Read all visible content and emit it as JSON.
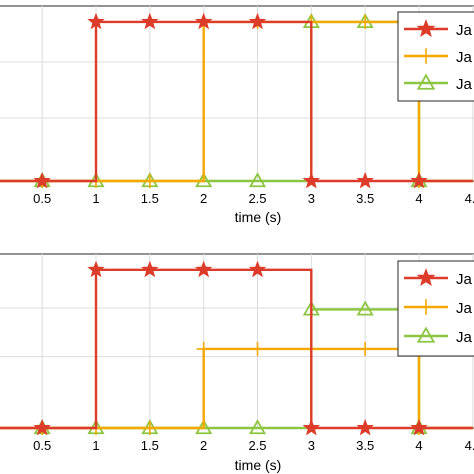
{
  "colors": {
    "series_1": "#dd3c2a",
    "series_2": "#f5a800",
    "series_3": "#8cc640"
  },
  "chart_data": [
    {
      "type": "line",
      "step": true,
      "xlabel": "time (s)",
      "ylabel": "",
      "xlim": [
        0,
        4.5
      ],
      "ylim": [
        0,
        1.1
      ],
      "grid": true,
      "legend": "top-right",
      "x_ticks": [
        "0.5",
        "1",
        "1.5",
        "2",
        "2.5",
        "3",
        "3.5",
        "4",
        "4."
      ],
      "series": [
        {
          "name": "Ja",
          "color": "#dd3c2a",
          "marker": "star",
          "steps": [
            [
              0,
              0
            ],
            [
              1,
              1
            ],
            [
              3,
              0
            ]
          ],
          "markers_x": [
            0.5,
            1,
            1.5,
            2,
            2.5,
            3,
            3.5,
            4
          ]
        },
        {
          "name": "Ja",
          "color": "#f5a800",
          "marker": "plus",
          "steps": [
            [
              0,
              0
            ],
            [
              2,
              1
            ],
            [
              4,
              0
            ]
          ],
          "markers_x": [
            0.5,
            1,
            1.5,
            2,
            2.5,
            3,
            3.5,
            4
          ]
        },
        {
          "name": "Ja",
          "color": "#8cc640",
          "marker": "triangle",
          "steps": [
            [
              0,
              0
            ],
            [
              3,
              1
            ],
            [
              4,
              0
            ]
          ],
          "markers_x": [
            0.5,
            1,
            1.5,
            2,
            2.5,
            3,
            3.5,
            4
          ]
        }
      ]
    },
    {
      "type": "line",
      "step": true,
      "xlabel": "time (s)",
      "ylabel": "",
      "xlim": [
        0,
        4.5
      ],
      "ylim": [
        0,
        1.1
      ],
      "grid": true,
      "legend": "top-right",
      "x_ticks": [
        "0.5",
        "1",
        "1.5",
        "2",
        "2.5",
        "3",
        "3.5",
        "4",
        "4."
      ],
      "series": [
        {
          "name": "Ja",
          "color": "#dd3c2a",
          "marker": "star",
          "steps": [
            [
              0,
              0
            ],
            [
              1,
              1
            ],
            [
              3,
              0
            ]
          ],
          "markers_x": [
            0.5,
            1,
            1.5,
            2,
            2.5,
            3,
            3.5,
            4
          ]
        },
        {
          "name": "Ja",
          "color": "#f5a800",
          "marker": "plus",
          "steps": [
            [
              0,
              0
            ],
            [
              2,
              0.5
            ],
            [
              4,
              0
            ]
          ],
          "markers_x": [
            0.5,
            1,
            1.5,
            2,
            2.5,
            3,
            3.5,
            4
          ]
        },
        {
          "name": "Ja",
          "color": "#8cc640",
          "marker": "triangle",
          "steps": [
            [
              0,
              0
            ],
            [
              3,
              0.75
            ],
            [
              4,
              0
            ]
          ],
          "markers_x": [
            0.5,
            1,
            1.5,
            2,
            2.5,
            3,
            3.5,
            4
          ]
        }
      ]
    }
  ]
}
